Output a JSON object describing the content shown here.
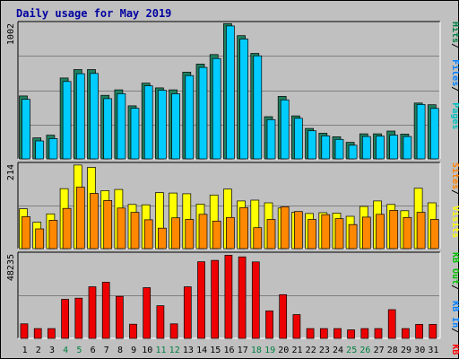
{
  "chart_data": {
    "type": "bar",
    "title": "Daily usage for May 2019",
    "categories": [
      "1",
      "2",
      "3",
      "4",
      "5",
      "6",
      "7",
      "8",
      "9",
      "10",
      "11",
      "12",
      "13",
      "14",
      "15",
      "16",
      "17",
      "18",
      "19",
      "20",
      "21",
      "22",
      "23",
      "24",
      "25",
      "26",
      "27",
      "28",
      "29",
      "30",
      "31"
    ],
    "weekend_days": [
      4,
      5,
      11,
      12,
      18,
      19,
      25,
      26
    ],
    "panels": [
      {
        "id": "hits",
        "tick_label": "1002",
        "ylim": [
          0,
          1002
        ],
        "legend": [
          {
            "label": "Pages",
            "color": "#00C0C0"
          },
          {
            "label": "Files",
            "color": "#0080FF"
          },
          {
            "label": "Hits",
            "color": "#008040"
          }
        ],
        "series": [
          {
            "name": "Hits",
            "color": "#1F7F5F",
            "values": [
              465,
              155,
              175,
              598,
              660,
              660,
              470,
              510,
              392,
              560,
              525,
              510,
              641,
              701,
              771,
              1000,
              911,
              780,
              312,
              462,
              318,
              225,
              190,
              163,
              122,
              185,
              185,
              206,
              183,
              413,
              400
            ]
          },
          {
            "name": "Pages",
            "color": "#00CCFF",
            "values": [
              440,
              133,
              150,
              572,
              630,
              632,
              445,
              482,
              374,
              540,
              507,
              481,
              616,
              676,
              742,
              983,
              886,
              762,
              290,
              436,
              300,
              208,
              170,
              144,
              101,
              165,
              168,
              175,
              165,
              402,
              373
            ]
          }
        ]
      },
      {
        "id": "visits",
        "tick_label": "214",
        "ylim": [
          0,
          214
        ],
        "legend": [
          {
            "label": "Visits",
            "color": "#FFFF00"
          },
          {
            "label": "Sites",
            "color": "#FF8000"
          }
        ],
        "series": [
          {
            "name": "Visits",
            "color": "#FFFF00",
            "values": [
              101,
              67,
              88,
              152,
              212,
              206,
              147,
              150,
              112,
              111,
              142,
              141,
              139,
              113,
              136,
              151,
              121,
              123,
              116,
              103,
              92,
              89,
              91,
              90,
              82,
              107,
              121,
              112,
              96,
              153,
              116
            ]
          },
          {
            "name": "Sites",
            "color": "#FF8800",
            "values": [
              81,
              50,
              72,
              102,
              156,
              140,
              122,
              103,
              92,
              73,
              52,
              78,
              74,
              87,
              70,
              79,
              104,
              53,
              74,
              106,
              94,
              74,
              86,
              76,
              61,
              80,
              87,
              97,
              79,
              92,
              74
            ]
          }
        ]
      },
      {
        "id": "kbytes",
        "tick_label": "48235",
        "ylim": [
          0,
          48235
        ],
        "legend": [
          {
            "label": "KB F",
            "color": "#FF0000"
          },
          {
            "label": "KB In",
            "color": "#0080FF"
          },
          {
            "label": "KB Out",
            "color": "#00C000"
          }
        ],
        "series": [
          {
            "name": "KB F",
            "color": "#EE0000",
            "values": [
              8300,
              5600,
              5600,
              22300,
              23000,
              29500,
              32100,
              24000,
              8100,
              29000,
              18700,
              8300,
              29500,
              43800,
              44600,
              47500,
              46600,
              43700,
              15700,
              25000,
              13600,
              5600,
              5600,
              5600,
              4900,
              5600,
              5600,
              16400,
              5600,
              8000,
              8000
            ]
          }
        ]
      }
    ]
  }
}
